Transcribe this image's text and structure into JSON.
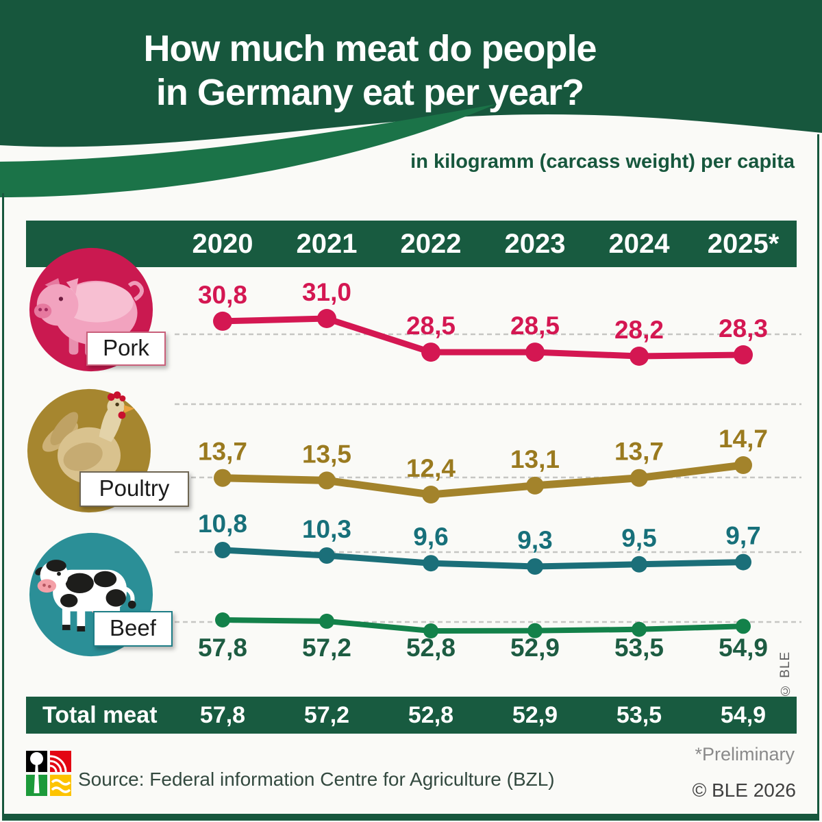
{
  "header": {
    "title_line1": "How much meat do people",
    "title_line2": "in Germany eat per year?",
    "subtitle": "in kilogramm (carcass weight) per capita"
  },
  "chart_data": {
    "type": "line",
    "x": [
      "2020",
      "2021",
      "2022",
      "2023",
      "2024",
      "2025*"
    ],
    "unit": "kilogramm (carcass weight) per capita",
    "grid": "horizontal dashed guide line per row",
    "legend_position": "left animal badges",
    "decimal_separator": ",",
    "series": [
      {
        "name": "Pork",
        "color": "#d41752",
        "label_color": "#d41752",
        "values": [
          30.8,
          31.0,
          28.5,
          28.5,
          28.2,
          28.3
        ]
      },
      {
        "name": "Poultry",
        "color": "#a3832b",
        "label_color": "#9a7a1f",
        "values": [
          13.7,
          13.5,
          12.4,
          13.1,
          13.7,
          14.7
        ]
      },
      {
        "name": "Beef",
        "color": "#1b6f79",
        "label_color": "#17707a",
        "values": [
          10.8,
          10.3,
          9.6,
          9.3,
          9.5,
          9.7
        ]
      },
      {
        "name": "Total meat",
        "color": "#13814a",
        "label_color": "#1d5c42",
        "values": [
          57.8,
          57.2,
          52.8,
          52.9,
          53.5,
          54.9
        ]
      }
    ]
  },
  "rows": [
    {
      "label": "Pork",
      "icon": "pig-icon",
      "circle_color": "#ca1950"
    },
    {
      "label": "Poultry",
      "icon": "hen-icon",
      "circle_color": "#a6862f"
    },
    {
      "label": "Beef",
      "icon": "cow-icon",
      "circle_color": "#2b8f97"
    }
  ],
  "total_row": {
    "label": "Total meat",
    "values": [
      "57,8",
      "57,2",
      "52,8",
      "52,9",
      "53,5",
      "54,9"
    ]
  },
  "footer": {
    "preliminary": "*Preliminary",
    "source": "Source: Federal information Centre for Agriculture (BZL)",
    "copyright": "© BLE 2026",
    "side_credit": "© BLE",
    "logo": "bzl-logo"
  },
  "colors": {
    "header_green": "#17573d",
    "swoosh_green": "#1b7348",
    "bar_green": "#185b40",
    "background": "#fafaf7",
    "gridline": "#c6c6c3"
  }
}
